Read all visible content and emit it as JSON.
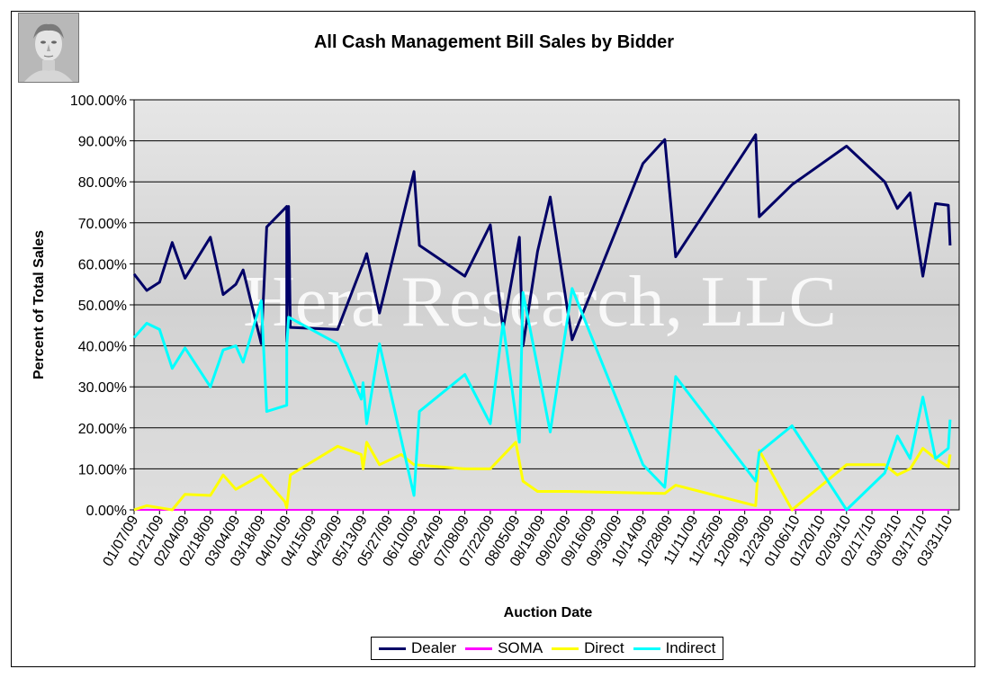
{
  "colors": {
    "Dealer": "#000066",
    "SOMA": "#ff00ff",
    "Direct": "#ffff00",
    "Indirect": "#00ffff"
  },
  "watermark": "Hera Research, LLC",
  "chart_data": {
    "type": "line",
    "title": "All Cash Management Bill Sales by Bidder",
    "xlabel": "Auction Date",
    "ylabel": "Percent of Total Sales",
    "ylim": [
      0,
      100
    ],
    "yticks": [
      "0.00%",
      "10.00%",
      "20.00%",
      "30.00%",
      "40.00%",
      "50.00%",
      "60.00%",
      "70.00%",
      "80.00%",
      "90.00%",
      "100.00%"
    ],
    "xlim": [
      "01/07/09",
      "04/06/10"
    ],
    "xticks": [
      "01/07/09",
      "01/21/09",
      "02/04/09",
      "02/18/09",
      "03/04/09",
      "03/18/09",
      "04/01/09",
      "04/15/09",
      "04/29/09",
      "05/13/09",
      "05/27/09",
      "06/10/09",
      "06/24/09",
      "07/08/09",
      "07/22/09",
      "08/05/09",
      "08/19/09",
      "09/02/09",
      "09/16/09",
      "09/30/09",
      "10/14/09",
      "10/28/09",
      "11/11/09",
      "11/25/09",
      "12/09/09",
      "12/23/09",
      "01/06/10",
      "01/20/10",
      "02/03/10",
      "02/17/10",
      "03/03/10",
      "03/17/10",
      "03/31/10"
    ],
    "grid": true,
    "legend": "bottom",
    "series": [
      {
        "name": "Dealer",
        "points": [
          [
            "2009-01-07",
            57.5
          ],
          [
            "2009-01-14",
            53.5
          ],
          [
            "2009-01-21",
            55.5
          ],
          [
            "2009-01-28",
            65.2
          ],
          [
            "2009-02-04",
            56.5
          ],
          [
            "2009-02-18",
            66.5
          ],
          [
            "2009-02-25",
            52.5
          ],
          [
            "2009-03-04",
            55
          ],
          [
            "2009-03-08",
            58.5
          ],
          [
            "2009-03-18",
            40.5
          ],
          [
            "2009-03-21",
            69
          ],
          [
            "2009-04-01",
            74
          ],
          [
            "2009-04-01",
            41
          ],
          [
            "2009-04-02",
            74
          ],
          [
            "2009-04-03",
            44.5
          ],
          [
            "2009-04-29",
            44
          ],
          [
            "2009-05-12",
            59
          ],
          [
            "2009-05-13",
            60
          ],
          [
            "2009-05-15",
            62.5
          ],
          [
            "2009-05-22",
            48
          ],
          [
            "2009-06-10",
            82.5
          ],
          [
            "2009-06-13",
            64.5
          ],
          [
            "2009-07-08",
            57
          ],
          [
            "2009-07-22",
            69.5
          ],
          [
            "2009-07-29",
            44
          ],
          [
            "2009-08-07",
            66.5
          ],
          [
            "2009-08-09",
            40
          ],
          [
            "2009-08-17",
            63
          ],
          [
            "2009-08-24",
            76.3
          ],
          [
            "2009-09-05",
            41.5
          ],
          [
            "2009-10-14",
            84.5
          ],
          [
            "2009-10-26",
            90.3
          ],
          [
            "2009-11-01",
            61.7
          ],
          [
            "2009-12-15",
            91.5
          ],
          [
            "2009-12-17",
            71.5
          ],
          [
            "2010-01-04",
            79.3
          ],
          [
            "2010-02-03",
            88.7
          ],
          [
            "2010-02-24",
            80
          ],
          [
            "2010-03-03",
            73.5
          ],
          [
            "2010-03-10",
            77.3
          ],
          [
            "2010-03-17",
            57
          ],
          [
            "2010-03-24",
            74.7
          ],
          [
            "2010-03-31",
            74.3
          ],
          [
            "2010-04-01",
            64.5
          ]
        ]
      },
      {
        "name": "SOMA",
        "points": [
          [
            "2009-01-07",
            0
          ],
          [
            "2010-04-01",
            0
          ]
        ]
      },
      {
        "name": "Direct",
        "points": [
          [
            "2009-01-07",
            0
          ],
          [
            "2009-01-14",
            1
          ],
          [
            "2009-01-21",
            0.5
          ],
          [
            "2009-01-28",
            0
          ],
          [
            "2009-02-04",
            3.8
          ],
          [
            "2009-02-18",
            3.5
          ],
          [
            "2009-02-25",
            8.5
          ],
          [
            "2009-03-04",
            5
          ],
          [
            "2009-03-18",
            8.5
          ],
          [
            "2009-03-31",
            2
          ],
          [
            "2009-04-01",
            0.5
          ],
          [
            "2009-04-03",
            8.5
          ],
          [
            "2009-04-29",
            15.5
          ],
          [
            "2009-05-12",
            13.5
          ],
          [
            "2009-05-13",
            10
          ],
          [
            "2009-05-15",
            16.5
          ],
          [
            "2009-05-22",
            11
          ],
          [
            "2009-06-03",
            13.5
          ],
          [
            "2009-06-10",
            11
          ],
          [
            "2009-07-08",
            10
          ],
          [
            "2009-07-22",
            10
          ],
          [
            "2009-08-05",
            16.5
          ],
          [
            "2009-08-09",
            7
          ],
          [
            "2009-08-17",
            4.5
          ],
          [
            "2009-09-02",
            4.5
          ],
          [
            "2009-10-26",
            4
          ],
          [
            "2009-11-01",
            6
          ],
          [
            "2009-12-15",
            1
          ],
          [
            "2009-12-17",
            14.5
          ],
          [
            "2010-01-04",
            0
          ],
          [
            "2010-02-03",
            11
          ],
          [
            "2010-02-24",
            11
          ],
          [
            "2010-03-03",
            8.5
          ],
          [
            "2010-03-10",
            10
          ],
          [
            "2010-03-17",
            15
          ],
          [
            "2010-03-24",
            12.5
          ],
          [
            "2010-03-31",
            10.5
          ],
          [
            "2010-04-01",
            13.5
          ]
        ]
      },
      {
        "name": "Indirect",
        "points": [
          [
            "2009-01-07",
            42
          ],
          [
            "2009-01-14",
            45.5
          ],
          [
            "2009-01-21",
            44
          ],
          [
            "2009-01-28",
            34.5
          ],
          [
            "2009-02-04",
            39.5
          ],
          [
            "2009-02-18",
            30
          ],
          [
            "2009-02-25",
            39
          ],
          [
            "2009-03-04",
            40
          ],
          [
            "2009-03-08",
            36
          ],
          [
            "2009-03-18",
            51
          ],
          [
            "2009-03-21",
            24
          ],
          [
            "2009-04-01",
            25.5
          ],
          [
            "2009-04-01",
            40
          ],
          [
            "2009-04-02",
            47
          ],
          [
            "2009-04-29",
            40.5
          ],
          [
            "2009-05-12",
            27
          ],
          [
            "2009-05-13",
            31
          ],
          [
            "2009-05-15",
            21
          ],
          [
            "2009-05-22",
            40.5
          ],
          [
            "2009-06-10",
            3.5
          ],
          [
            "2009-06-13",
            24
          ],
          [
            "2009-07-08",
            33
          ],
          [
            "2009-07-22",
            21
          ],
          [
            "2009-07-29",
            45.5
          ],
          [
            "2009-08-07",
            16.5
          ],
          [
            "2009-08-09",
            53
          ],
          [
            "2009-08-24",
            19
          ],
          [
            "2009-09-05",
            54
          ],
          [
            "2009-10-14",
            11
          ],
          [
            "2009-10-26",
            5.5
          ],
          [
            "2009-11-01",
            32.5
          ],
          [
            "2009-12-15",
            7
          ],
          [
            "2009-12-17",
            14
          ],
          [
            "2010-01-04",
            20.5
          ],
          [
            "2010-02-03",
            0
          ],
          [
            "2010-02-24",
            9
          ],
          [
            "2010-03-03",
            18
          ],
          [
            "2010-03-10",
            12.5
          ],
          [
            "2010-03-17",
            27.5
          ],
          [
            "2010-03-24",
            12.5
          ],
          [
            "2010-03-31",
            15
          ],
          [
            "2010-04-01",
            22
          ]
        ]
      }
    ]
  }
}
